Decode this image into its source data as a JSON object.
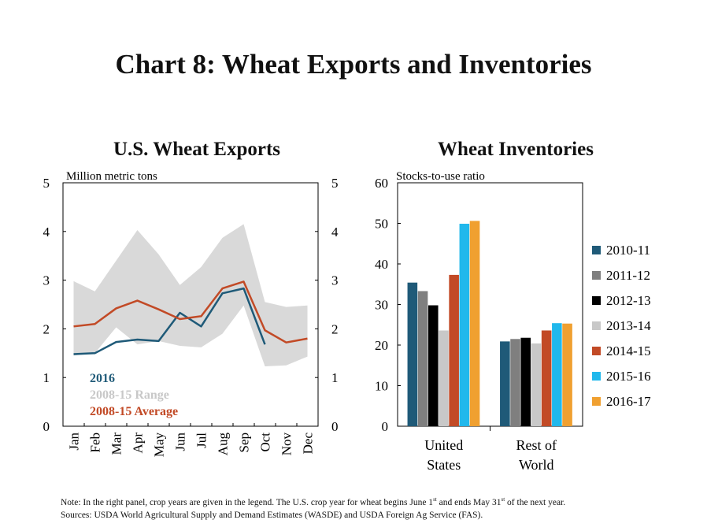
{
  "title": "Chart 8: Wheat Exports and Inventories",
  "chart_data": [
    {
      "type": "line",
      "title": "U.S. Wheat Exports",
      "ylabel": "Million metric tons",
      "ylim": [
        0,
        5
      ],
      "yticks": [
        0,
        1,
        2,
        3,
        4,
        5
      ],
      "categories": [
        "Jan",
        "Feb",
        "Mar",
        "Apr",
        "May",
        "Jun",
        "Jul",
        "Aug",
        "Sep",
        "Oct",
        "Nov",
        "Dec"
      ],
      "range": {
        "name": "2008-15 Range",
        "color": "#d9d9d9",
        "upper": [
          2.98,
          2.77,
          3.4,
          4.03,
          3.53,
          2.9,
          3.27,
          3.87,
          4.15,
          2.55,
          2.45,
          2.48
        ],
        "lower": [
          1.45,
          1.5,
          2.03,
          1.68,
          1.75,
          1.65,
          1.62,
          1.9,
          2.48,
          1.23,
          1.25,
          1.43
        ]
      },
      "series": [
        {
          "name": "2016",
          "color": "#1f5a78",
          "values": [
            1.48,
            1.5,
            1.73,
            1.78,
            1.75,
            2.33,
            2.05,
            2.73,
            2.83,
            1.68,
            null,
            null
          ]
        },
        {
          "name": "2008-15 Average",
          "color": "#c24a26",
          "values": [
            2.05,
            2.1,
            2.42,
            2.58,
            2.4,
            2.2,
            2.26,
            2.83,
            2.97,
            1.97,
            1.72,
            1.8
          ]
        }
      ],
      "legend": [
        "2016",
        "2008-15 Range",
        "2008-15 Average"
      ]
    },
    {
      "type": "bar",
      "title": "Wheat Inventories",
      "ylabel": "Stocks-to-use ratio",
      "ylim": [
        0,
        60
      ],
      "yticks": [
        0,
        10,
        20,
        30,
        40,
        50,
        60
      ],
      "categories": [
        [
          "United",
          "States"
        ],
        [
          "Rest of",
          "World"
        ]
      ],
      "series": [
        {
          "name": "2010-11",
          "color": "#1f5a78",
          "values": [
            35.4,
            20.9
          ]
        },
        {
          "name": "2011-12",
          "color": "#7f7f7f",
          "values": [
            33.3,
            21.5
          ]
        },
        {
          "name": "2012-13",
          "color": "#000000",
          "values": [
            29.8,
            21.8
          ]
        },
        {
          "name": "2013-14",
          "color": "#c8c8c8",
          "values": [
            23.6,
            20.4
          ]
        },
        {
          "name": "2014-15",
          "color": "#c24a26",
          "values": [
            37.3,
            23.6
          ]
        },
        {
          "name": "2015-16",
          "color": "#21b8ec",
          "values": [
            49.9,
            25.4
          ]
        },
        {
          "name": "2016-17",
          "color": "#f0a030",
          "values": [
            50.6,
            25.3
          ]
        }
      ],
      "legend_position": "right"
    }
  ],
  "notes": {
    "line1_a": "Note: In the right panel, crop years are given in the legend. The U.S. crop year for wheat begins June 1",
    "line1_sup1": "st",
    "line1_b": " and ends May 31",
    "line1_sup2": "st",
    "line1_c": " of the next year.",
    "line2": "Sources: USDA World Agricultural Supply and Demand Estimates (WASDE) and USDA Foreign Ag Service (FAS)."
  }
}
